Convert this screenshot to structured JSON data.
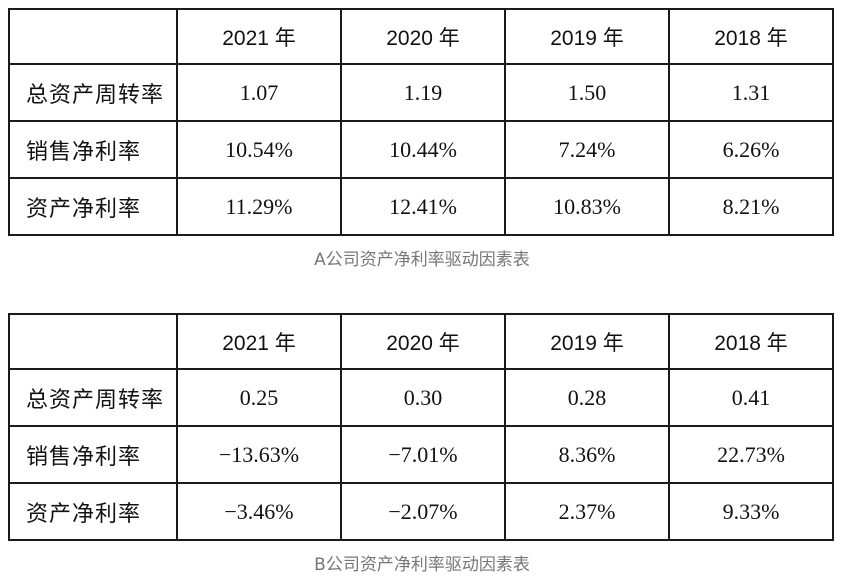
{
  "headers": [
    "",
    "2021 年",
    "2020 年",
    "2019 年",
    "2018 年"
  ],
  "table_a": {
    "caption": "A公司资产净利率驱动因素表",
    "rows": [
      {
        "label": "总资产周转率",
        "values": [
          "1.07",
          "1.19",
          "1.50",
          "1.31"
        ]
      },
      {
        "label": "销售净利率",
        "values": [
          "10.54%",
          "10.44%",
          "7.24%",
          "6.26%"
        ]
      },
      {
        "label": "资产净利率",
        "values": [
          "11.29%",
          "12.41%",
          "10.83%",
          "8.21%"
        ]
      }
    ]
  },
  "table_b": {
    "caption": "B公司资产净利率驱动因素表",
    "rows": [
      {
        "label": "总资产周转率",
        "values": [
          "0.25",
          "0.30",
          "0.28",
          "0.41"
        ]
      },
      {
        "label": "销售净利率",
        "values": [
          "−13.63%",
          "−7.01%",
          "8.36%",
          "22.73%"
        ]
      },
      {
        "label": "资产净利率",
        "values": [
          "−3.46%",
          "−2.07%",
          "2.37%",
          "9.33%"
        ]
      }
    ]
  }
}
